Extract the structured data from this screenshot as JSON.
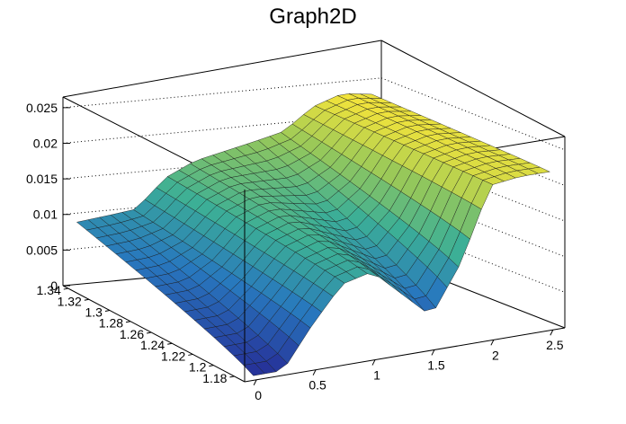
{
  "chart_data": {
    "type": "surface",
    "title": "Graph2D",
    "x_axis": {
      "label": "",
      "range": [
        -0.1,
        2.6
      ],
      "ticks": [
        "0",
        "0.5",
        "1",
        "1.5",
        "2",
        "2.5"
      ],
      "tick_values": [
        0,
        0.5,
        1,
        1.5,
        2,
        2.5
      ]
    },
    "y_axis": {
      "label": "",
      "range": [
        1.17,
        1.345
      ],
      "ticks": [
        "1.18",
        "1.2",
        "1.22",
        "1.24",
        "1.26",
        "1.28",
        "1.3",
        "1.32",
        "1.34"
      ],
      "tick_values": [
        1.18,
        1.2,
        1.22,
        1.24,
        1.26,
        1.28,
        1.3,
        1.32,
        1.34
      ]
    },
    "z_axis": {
      "label": "",
      "range": [
        0,
        0.027
      ],
      "ticks": [
        "0",
        "0.005",
        "0.01",
        "0.015",
        "0.02",
        "0.025"
      ],
      "tick_values": [
        0,
        0.005,
        0.01,
        0.015,
        0.02,
        0.025
      ]
    },
    "grid": true,
    "colormap": "viridis-like",
    "colors": {
      "low": "#2b3aa0",
      "mid": "#3fae9a",
      "high": "#f5e23a",
      "mesh": "#1a1a1a"
    },
    "surface_profile": {
      "x": [
        0.0,
        0.25,
        0.5,
        0.75,
        1.0,
        1.25,
        1.5,
        1.75,
        2.0,
        2.25,
        2.5
      ],
      "z_at_y_min": [
        0.0,
        0.0,
        0.006,
        0.011,
        0.012,
        0.008,
        0.004,
        0.011,
        0.0215,
        0.022,
        0.022
      ],
      "z_at_y_max": [
        0.009,
        0.0095,
        0.01,
        0.014,
        0.016,
        0.017,
        0.018,
        0.019,
        0.022,
        0.0235,
        0.023
      ]
    }
  }
}
